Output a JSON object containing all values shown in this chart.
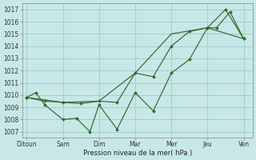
{
  "title": "Pression niveau de la mer( hPa )",
  "background_color": "#c8e8e8",
  "grid_color": "#9fc8c8",
  "line_color": "#2d6a2d",
  "xlabels": [
    "Ditoun",
    "Sam",
    "Dim",
    "Mar",
    "Mer",
    "Jeu",
    "Ven"
  ],
  "xtick_positions": [
    0,
    8,
    16,
    24,
    32,
    40,
    48
  ],
  "xlim": [
    -1,
    50
  ],
  "ylim": [
    1006.5,
    1017.5
  ],
  "yticks": [
    1007,
    1008,
    1009,
    1010,
    1011,
    1012,
    1013,
    1014,
    1015,
    1016,
    1017
  ],
  "line1_x": [
    0,
    2,
    4,
    8,
    11,
    14,
    16,
    20,
    24,
    28,
    32,
    36,
    40,
    42,
    45,
    48
  ],
  "line1_y": [
    1009.8,
    1010.2,
    1009.2,
    1008.0,
    1008.1,
    1007.0,
    1009.2,
    1007.2,
    1010.2,
    1008.7,
    1011.8,
    1012.9,
    1015.5,
    1015.5,
    1016.8,
    1014.6
  ],
  "line2_x": [
    0,
    4,
    8,
    12,
    16,
    20,
    24,
    28,
    32,
    36,
    40,
    44,
    48
  ],
  "line2_y": [
    1009.8,
    1009.5,
    1009.4,
    1009.3,
    1009.5,
    1009.4,
    1011.8,
    1011.5,
    1014.0,
    1015.2,
    1015.5,
    1017.0,
    1014.6
  ],
  "line3_x": [
    0,
    8,
    16,
    24,
    32,
    40,
    48
  ],
  "line3_y": [
    1009.8,
    1009.4,
    1009.5,
    1011.8,
    1015.0,
    1015.5,
    1014.6
  ]
}
